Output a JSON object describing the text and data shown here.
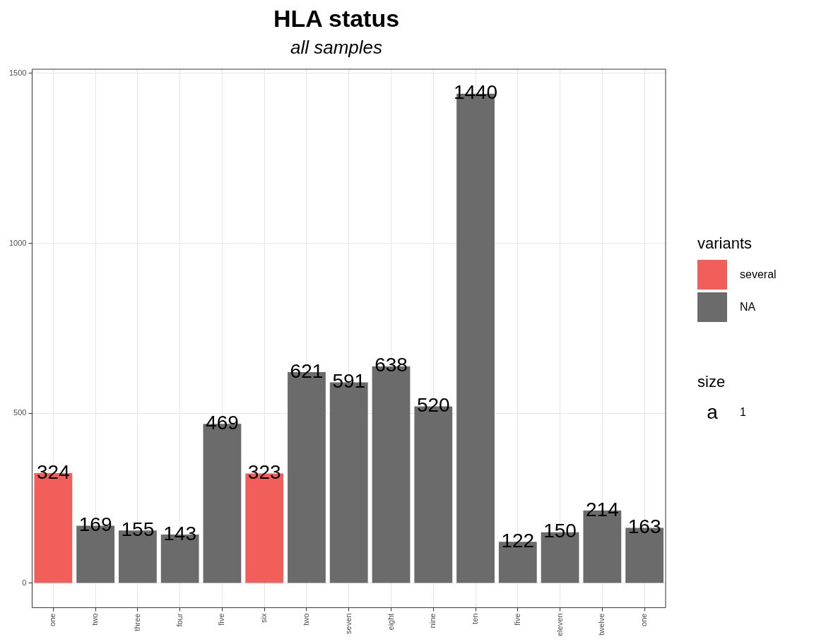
{
  "chart_data": {
    "type": "bar",
    "title": "HLA status",
    "subtitle": "all samples",
    "legend_title": "variants",
    "categories": [
      "one",
      "two",
      "three",
      "four",
      "five",
      "six",
      "two",
      "seven",
      "eight",
      "nine",
      "ten",
      "five",
      "eleven",
      "twelve",
      "one"
    ],
    "series": [
      {
        "name": "several",
        "color": "#f25e59",
        "values": [
          324,
          null,
          null,
          null,
          null,
          323,
          null,
          null,
          null,
          null,
          null,
          null,
          null,
          null,
          null
        ]
      },
      {
        "name": "NA",
        "color": "#6b6b6b",
        "values": [
          null,
          169,
          155,
          143,
          469,
          null,
          621,
          591,
          638,
          520,
          1440,
          122,
          150,
          214,
          163
        ]
      }
    ],
    "stacked": true,
    "data_labels": true,
    "ylim": [
      -72,
      1512
    ],
    "yticks": [
      0,
      500,
      1000,
      1500
    ],
    "grid": true,
    "legend": "right",
    "annotations": [
      "size",
      "a",
      "1"
    ]
  }
}
